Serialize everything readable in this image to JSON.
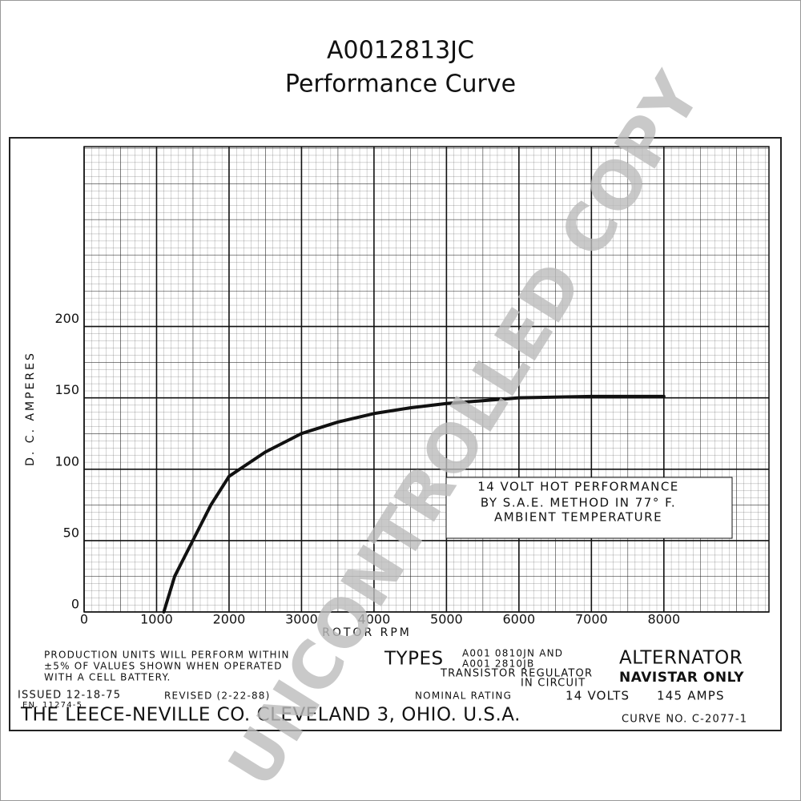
{
  "chart_data": {
    "type": "line",
    "title": "A0012813JC",
    "subtitle": "Performance Curve",
    "x_label": "ROTOR RPM",
    "y_label": "D. C. AMPERES",
    "x": [
      1100,
      1250,
      1500,
      1750,
      2000,
      2500,
      3000,
      3500,
      4000,
      4500,
      5000,
      5500,
      6000,
      7000,
      8000
    ],
    "values": [
      0,
      25,
      50,
      75,
      95,
      112,
      125,
      133,
      139,
      143,
      146,
      148,
      150,
      151,
      151
    ],
    "color": "#111111",
    "xlim": [
      0,
      9450
    ],
    "ylim": [
      0,
      326
    ],
    "xticks": [
      0,
      1000,
      2000,
      3000,
      4000,
      5000,
      6000,
      7000,
      8000
    ],
    "yticks": [
      0,
      50,
      100,
      150,
      200
    ],
    "grid": true,
    "annotation": [
      "14 VOLT HOT PERFORMANCE",
      "BY S.A.E. METHOD IN 77° F.",
      "AMBIENT TEMPERATURE"
    ],
    "notes": [
      "PRODUCTION UNITS WILL PERFORM WITHIN",
      "±5% OF VALUES SHOWN WHEN OPERATED",
      "WITH A      CELL BATTERY.",
      "TYPES",
      "A001 0810JN AND",
      "A001 2810JB",
      "TRANSISTOR REGULATOR",
      "IN CIRCUIT",
      "ALTERNATOR",
      "NAVISTAR ONLY",
      "ISSUED 12-18-75",
      "EN. 11274-5",
      "REVISED (2-22-88)",
      "NOMINAL RATING",
      "14 VOLTS",
      "145 AMPS",
      "THE LEECE-NEVILLE CO. CLEVELAND 3, OHIO. U.S.A.",
      "CURVE NO. C-2077-1"
    ],
    "watermark": "UNCONTROLLED COPY"
  }
}
